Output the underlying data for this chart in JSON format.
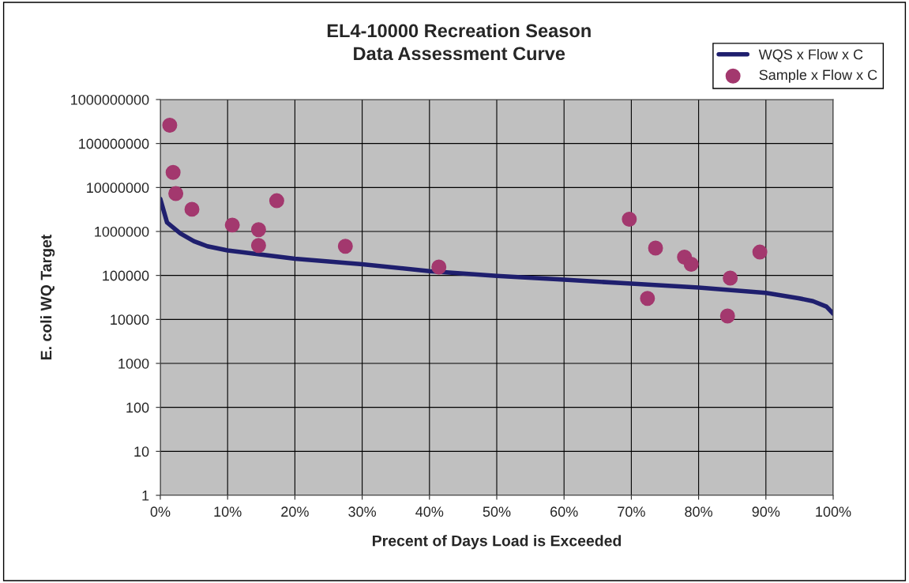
{
  "chart_data": {
    "type": "line",
    "title": "EL4-10000 Recreation Season\nData Assessment Curve",
    "xlabel": "Precent of Days Load is Exceeded",
    "ylabel": "E. coli WQ Target",
    "log": "y",
    "grid": true,
    "legend": "top right",
    "xlim": [
      0,
      100
    ],
    "xticks": [
      {
        "value": 0,
        "label": "0%"
      },
      {
        "value": 10,
        "label": "10%"
      },
      {
        "value": 20,
        "label": "20%"
      },
      {
        "value": 30,
        "label": "30%"
      },
      {
        "value": 40,
        "label": "40%"
      },
      {
        "value": 50,
        "label": "50%"
      },
      {
        "value": 60,
        "label": "60%"
      },
      {
        "value": 70,
        "label": "70%"
      },
      {
        "value": 80,
        "label": "80%"
      },
      {
        "value": 90,
        "label": "90%"
      },
      {
        "value": 100,
        "label": "100%"
      }
    ],
    "ylim": [
      1,
      1000000000
    ],
    "yticks": [
      1,
      10,
      100,
      1000,
      10000,
      100000,
      1000000,
      10000000,
      100000000,
      1000000000
    ],
    "series": [
      {
        "name": "WQS x Flow x C",
        "color": "#1f1f6e",
        "marker": "none",
        "line_style": "solid",
        "x": [
          0,
          1,
          2,
          3,
          5,
          7,
          10,
          20,
          30,
          40,
          50,
          60,
          70,
          80,
          90,
          95,
          97,
          99,
          100
        ],
        "values": [
          5500000,
          1600000,
          1200000,
          900000,
          600000,
          460000,
          370000,
          240000,
          180000,
          125000,
          98000,
          80000,
          65000,
          53000,
          40000,
          30000,
          26000,
          19500,
          13500
        ]
      },
      {
        "name": "Sample x Flow x C",
        "type": "scatter",
        "color": "#a3386e",
        "marker": "circle",
        "x": [
          1.4,
          1.9,
          2.3,
          4.7,
          10.7,
          14.6,
          14.6,
          17.3,
          27.5,
          41.4,
          69.7,
          72.4,
          73.6,
          77.9,
          78.9,
          84.7,
          84.3,
          89.1
        ],
        "values": [
          260000000,
          22000000,
          7300000,
          3200000,
          1400000,
          1100000,
          480000,
          5000000,
          460000,
          155000,
          1900000,
          30000,
          420000,
          260000,
          180000,
          87000,
          12000,
          340000
        ]
      }
    ]
  }
}
